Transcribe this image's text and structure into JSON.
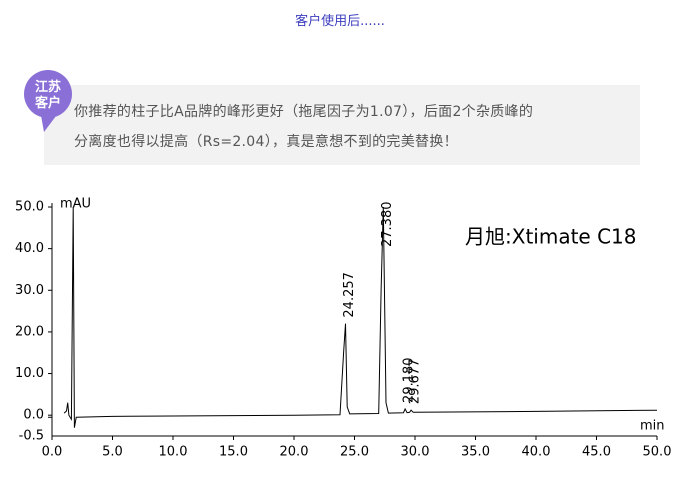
{
  "header": {
    "title": "客户使用后......"
  },
  "quote": {
    "badge": [
      "江苏",
      "客户"
    ],
    "lines": [
      "你推荐的柱子比A品牌的峰形更好（拖尾因子为1.07），后面2个杂质峰的",
      "分离度也得以提高（Rs=2.04），真是意想不到的完美替换！"
    ]
  },
  "chart_data": {
    "type": "line",
    "y_label": "mAU",
    "x_label": "min",
    "annotation": "月旭:Xtimate C18",
    "xlim": [
      0,
      50
    ],
    "ylim": [
      -5,
      50
    ],
    "xticks": [
      {
        "value": 0,
        "label": "0.0"
      },
      {
        "value": 5,
        "label": "5.0"
      },
      {
        "value": 10,
        "label": "10.0"
      },
      {
        "value": 15,
        "label": "15.0"
      },
      {
        "value": 20,
        "label": "20.0"
      },
      {
        "value": 25,
        "label": "25.0"
      },
      {
        "value": 30,
        "label": "30.0"
      },
      {
        "value": 35,
        "label": "35.0"
      },
      {
        "value": 40,
        "label": "40.0"
      },
      {
        "value": 45,
        "label": "45.0"
      },
      {
        "value": 50,
        "label": "50.0"
      }
    ],
    "yticks": [
      {
        "value": -0.5,
        "label": "-0.5"
      },
      {
        "value": 0,
        "label": "0.0"
      },
      {
        "value": 10,
        "label": "10.0"
      },
      {
        "value": 20,
        "label": "20.0"
      },
      {
        "value": 30,
        "label": "30.0"
      },
      {
        "value": 40,
        "label": "40.0"
      },
      {
        "value": 50,
        "label": "50.0"
      }
    ],
    "peaks": [
      {
        "value": 24.257,
        "label": "24.257"
      },
      {
        "value": 27.38,
        "label": "27.380"
      },
      {
        "value": 29.18,
        "label": "29.180"
      },
      {
        "value": 29.677,
        "label": "29.677"
      }
    ],
    "series": [
      {
        "color": "#000000",
        "x": [
          1.0,
          1.2,
          1.3,
          1.4,
          1.6,
          1.75,
          1.85,
          2.0,
          5,
          10,
          20,
          23.8,
          24.1,
          24.257,
          24.4,
          24.6,
          27.0,
          27.2,
          27.38,
          27.6,
          27.8,
          29.05,
          29.18,
          29.35,
          29.55,
          29.677,
          29.85,
          40,
          50
        ],
        "values": [
          0.5,
          1,
          3,
          0,
          -1,
          50,
          -3,
          -0.5,
          -0.3,
          -0.2,
          0,
          0.1,
          15,
          22,
          2,
          0.3,
          0.4,
          30,
          50,
          3,
          0.5,
          0.6,
          1.5,
          0.6,
          0.7,
          1.2,
          0.7,
          0.9,
          1.2
        ]
      }
    ]
  }
}
